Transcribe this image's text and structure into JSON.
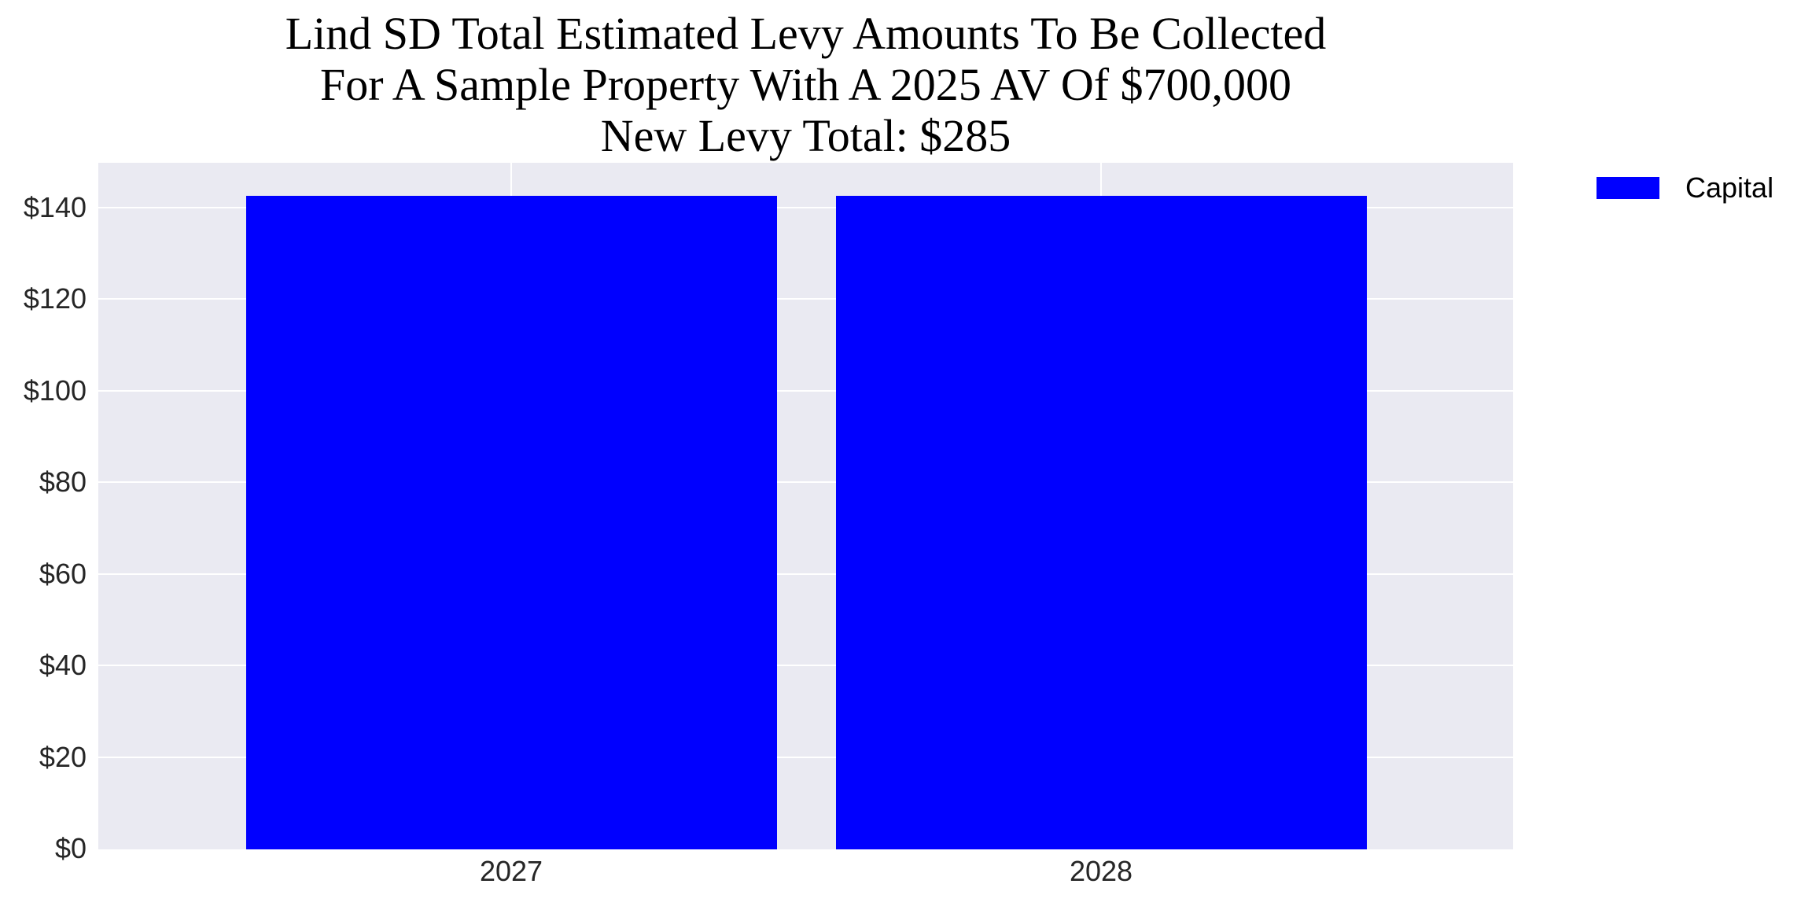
{
  "title": {
    "line1": "Lind SD Total Estimated Levy Amounts To Be Collected",
    "line2": "For A Sample Property With A 2025 AV Of $700,000",
    "line3": "New Levy Total: $285"
  },
  "y_ticks": [
    "$0",
    "$20",
    "$40",
    "$60",
    "$80",
    "$100",
    "$120",
    "$140"
  ],
  "x_ticks": [
    "2027",
    "2028"
  ],
  "legend": {
    "items": [
      {
        "label": "Capital",
        "color": "#0000ff"
      }
    ]
  },
  "colors": {
    "bar": "#0000ff",
    "plot_background": "#eaeaf2",
    "grid": "#ffffff"
  },
  "chart_data": {
    "type": "bar",
    "title": "Lind SD Total Estimated Levy Amounts To Be Collected\nFor A Sample Property With A 2025 AV Of $700,000\nNew Levy Total: $285",
    "categories": [
      "2027",
      "2028"
    ],
    "series": [
      {
        "name": "Capital",
        "color": "#0000ff",
        "values": [
          142.5,
          142.5
        ]
      }
    ],
    "xlabel": "",
    "ylabel": "",
    "ylim": [
      0,
      150
    ],
    "yticks": [
      0,
      20,
      40,
      60,
      80,
      100,
      120,
      140
    ],
    "ytick_format": "$",
    "grid": true,
    "legend_position": "upper right, outside plot"
  }
}
